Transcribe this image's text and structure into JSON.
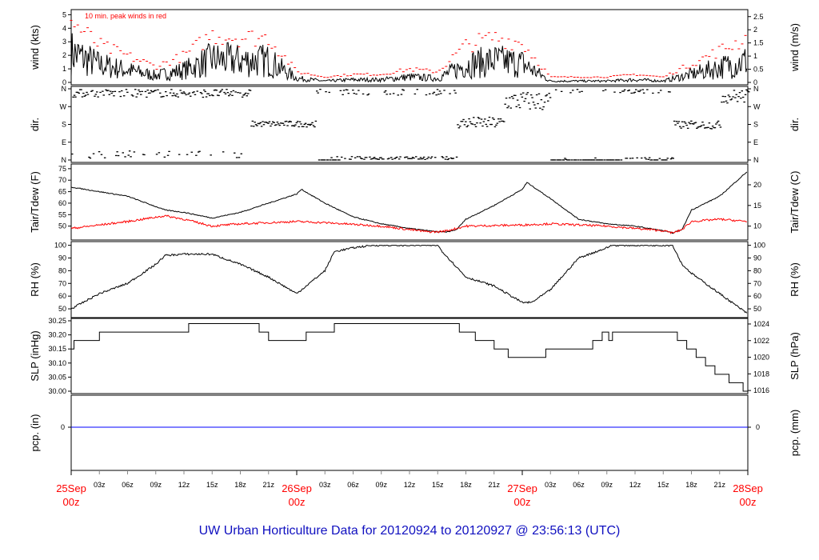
{
  "title": "UW Urban Horticulture Data for 20120924  to  20120927 @ 23:56:13  (UTC)",
  "chart_data": [
    {
      "type": "line",
      "name": "wind",
      "ylabel": "wind (kts)",
      "ylabel_right": "wind (m/s)",
      "ylim": [
        0,
        5.2
      ],
      "yticks": [
        "0",
        "1",
        "2",
        "3",
        "4",
        "5"
      ],
      "yticks_right": [
        "0",
        "0.5",
        "1",
        "1.5",
        "2",
        "2.5"
      ],
      "annotation": "10 min. peak winds in red",
      "mean_profile_hours": [
        0,
        3,
        6,
        9,
        12,
        15,
        18,
        21,
        24,
        27,
        30,
        33,
        36,
        39,
        42,
        45,
        48,
        51,
        54,
        57,
        60,
        63,
        66,
        69,
        72
      ],
      "mean_profile_kts": [
        2.2,
        1.3,
        0.9,
        0.5,
        0.9,
        1.7,
        1.6,
        1.6,
        0.3,
        0.1,
        0.2,
        0.2,
        0.4,
        0.3,
        1.3,
        1.6,
        1.4,
        0.1,
        0.1,
        0.1,
        0.2,
        0.1,
        0.6,
        1.1,
        1.6
      ]
    },
    {
      "type": "scatter",
      "name": "dir",
      "ylabel": "dir.",
      "ylabel_right": "dir.",
      "yticks": [
        "N",
        "E",
        "S",
        "W",
        "N"
      ]
    },
    {
      "type": "line",
      "name": "temp",
      "ylabel": "Tair/Tdew (F)",
      "ylabel_right": "Tair/Tdew (C)",
      "ylim": [
        45,
        76
      ],
      "yticks": [
        "50",
        "55",
        "60",
        "65",
        "70",
        "75"
      ],
      "yticks_right": [
        "10",
        "15",
        "20"
      ],
      "series": [
        {
          "name": "Tair",
          "color": "#000000",
          "hours": [
            0,
            6,
            10,
            12,
            15,
            18,
            24,
            24.5,
            27,
            30,
            33,
            36,
            39,
            40,
            41,
            42,
            45,
            48,
            48.5,
            51,
            54,
            57,
            60,
            63,
            64,
            65,
            66,
            69,
            72
          ],
          "values": [
            67,
            63,
            57,
            56,
            53.5,
            56,
            64,
            66,
            60,
            54,
            51,
            49,
            47.5,
            47.4,
            48.5,
            53,
            59,
            66,
            69,
            62,
            53,
            51,
            50,
            48,
            47,
            48.5,
            57,
            63,
            74
          ]
        },
        {
          "name": "Tdew",
          "color": "#ff0000",
          "hours": [
            0,
            6,
            10,
            12,
            15,
            18,
            24,
            27,
            33,
            36,
            38,
            39,
            40,
            42,
            48,
            51,
            57,
            63,
            64,
            65,
            66,
            69,
            72
          ],
          "values": [
            49,
            52,
            54.5,
            53,
            50,
            51,
            52,
            51.5,
            50,
            48.5,
            47.5,
            47.5,
            48,
            50,
            50.5,
            51,
            50,
            48,
            47,
            48.5,
            52,
            53,
            52
          ]
        }
      ]
    },
    {
      "type": "line",
      "name": "rh",
      "ylabel": "RH (%)",
      "ylabel_right": "RH (%)",
      "ylim": [
        45,
        101
      ],
      "yticks": [
        "50",
        "60",
        "70",
        "80",
        "90",
        "100"
      ],
      "hours": [
        0,
        3,
        6,
        9,
        10,
        12,
        15,
        18,
        21,
        24,
        27,
        28,
        30,
        32,
        39,
        39.5,
        42,
        45,
        48,
        49,
        51,
        54,
        57,
        57.5,
        64,
        65,
        66,
        69,
        72
      ],
      "values": [
        50,
        62,
        70,
        85,
        92,
        93,
        93,
        85,
        75,
        62,
        80,
        95,
        98,
        100,
        100,
        95,
        75,
        68,
        55,
        55,
        65,
        90,
        98,
        100,
        100,
        85,
        78,
        62,
        46
      ]
    },
    {
      "type": "line",
      "name": "slp",
      "ylabel": "SLP (inHg)",
      "ylabel_right": "SLP (hPa)",
      "ylim": [
        30.0,
        30.25
      ],
      "yticks": [
        "30.00",
        "30.05",
        "30.10",
        "30.15",
        "30.20",
        "30.25"
      ],
      "yticks_right": [
        "1016",
        "1018",
        "1020",
        "1022",
        "1024"
      ],
      "step_hours": [
        0,
        0.3,
        3,
        12.5,
        20,
        21,
        25,
        28,
        41.3,
        43,
        45,
        46.5,
        47,
        50.5,
        55.5,
        56.5,
        57,
        57.2,
        57.6,
        64,
        64.5,
        65.5,
        66.5,
        67.5,
        68.5,
        70,
        71.5,
        72
      ],
      "values": [
        30.15,
        30.18,
        30.21,
        30.24,
        30.21,
        30.18,
        30.21,
        30.24,
        30.21,
        30.18,
        30.15,
        30.12,
        30.12,
        30.15,
        30.18,
        30.21,
        30.21,
        30.18,
        30.21,
        30.21,
        30.18,
        30.15,
        30.12,
        30.09,
        30.06,
        30.03,
        30.0,
        30.0
      ]
    },
    {
      "type": "line",
      "name": "pcp",
      "ylabel": "pcp. (in)",
      "ylabel_right": "pcp. (mm)",
      "yticks": [
        "0"
      ],
      "yticks_right": [
        "0"
      ],
      "value": 0,
      "color": "#0000ff"
    }
  ],
  "xaxis": {
    "hour_labels": [
      "03z",
      "06z",
      "09z",
      "12z",
      "15z",
      "18z",
      "21z"
    ],
    "day_labels": [
      {
        "day": "25Sep",
        "hour": "00z"
      },
      {
        "day": "26Sep",
        "hour": "00z"
      },
      {
        "day": "27Sep",
        "hour": "00z"
      },
      {
        "day": "28Sep",
        "hour": "00z"
      }
    ]
  }
}
